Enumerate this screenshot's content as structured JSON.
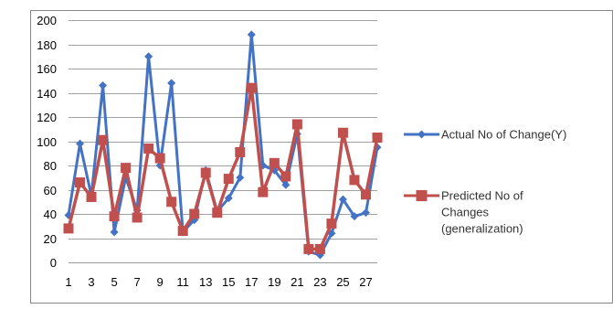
{
  "chart_data": {
    "type": "line",
    "title": "",
    "xlabel": "",
    "ylabel": "",
    "x": [
      1,
      2,
      3,
      4,
      5,
      6,
      7,
      8,
      9,
      10,
      11,
      12,
      13,
      14,
      15,
      16,
      17,
      18,
      19,
      20,
      21,
      22,
      23,
      24,
      25,
      26,
      27,
      28
    ],
    "x_tick_labels": [
      "1",
      "3",
      "5",
      "7",
      "9",
      "11",
      "13",
      "15",
      "17",
      "19",
      "21",
      "23",
      "25",
      "27"
    ],
    "ylim": [
      0,
      200
    ],
    "y_ticks": [
      0,
      20,
      40,
      60,
      80,
      100,
      120,
      140,
      160,
      180,
      200
    ],
    "grid": "horizontal",
    "legend_position": "right",
    "series": [
      {
        "name": "Actual No of Change(Y)",
        "color": "#4472C4",
        "marker": "diamond",
        "values": [
          39,
          98,
          55,
          146,
          25,
          70,
          43,
          170,
          80,
          148,
          25,
          35,
          76,
          42,
          53,
          70,
          188,
          80,
          76,
          64,
          106,
          9,
          6,
          24,
          52,
          38,
          41,
          95
        ]
      },
      {
        "name": "Predicted No of Changes (generalization)",
        "legend_lines": [
          "Predicted No of",
          "Changes",
          "(generalization)"
        ],
        "color": "#C0504D",
        "marker": "square",
        "values": [
          28,
          66,
          54,
          101,
          38,
          78,
          37,
          94,
          86,
          50,
          26,
          40,
          74,
          41,
          69,
          91,
          144,
          58,
          82,
          71,
          114,
          11,
          11,
          32,
          107,
          68,
          56,
          103
        ]
      }
    ]
  }
}
